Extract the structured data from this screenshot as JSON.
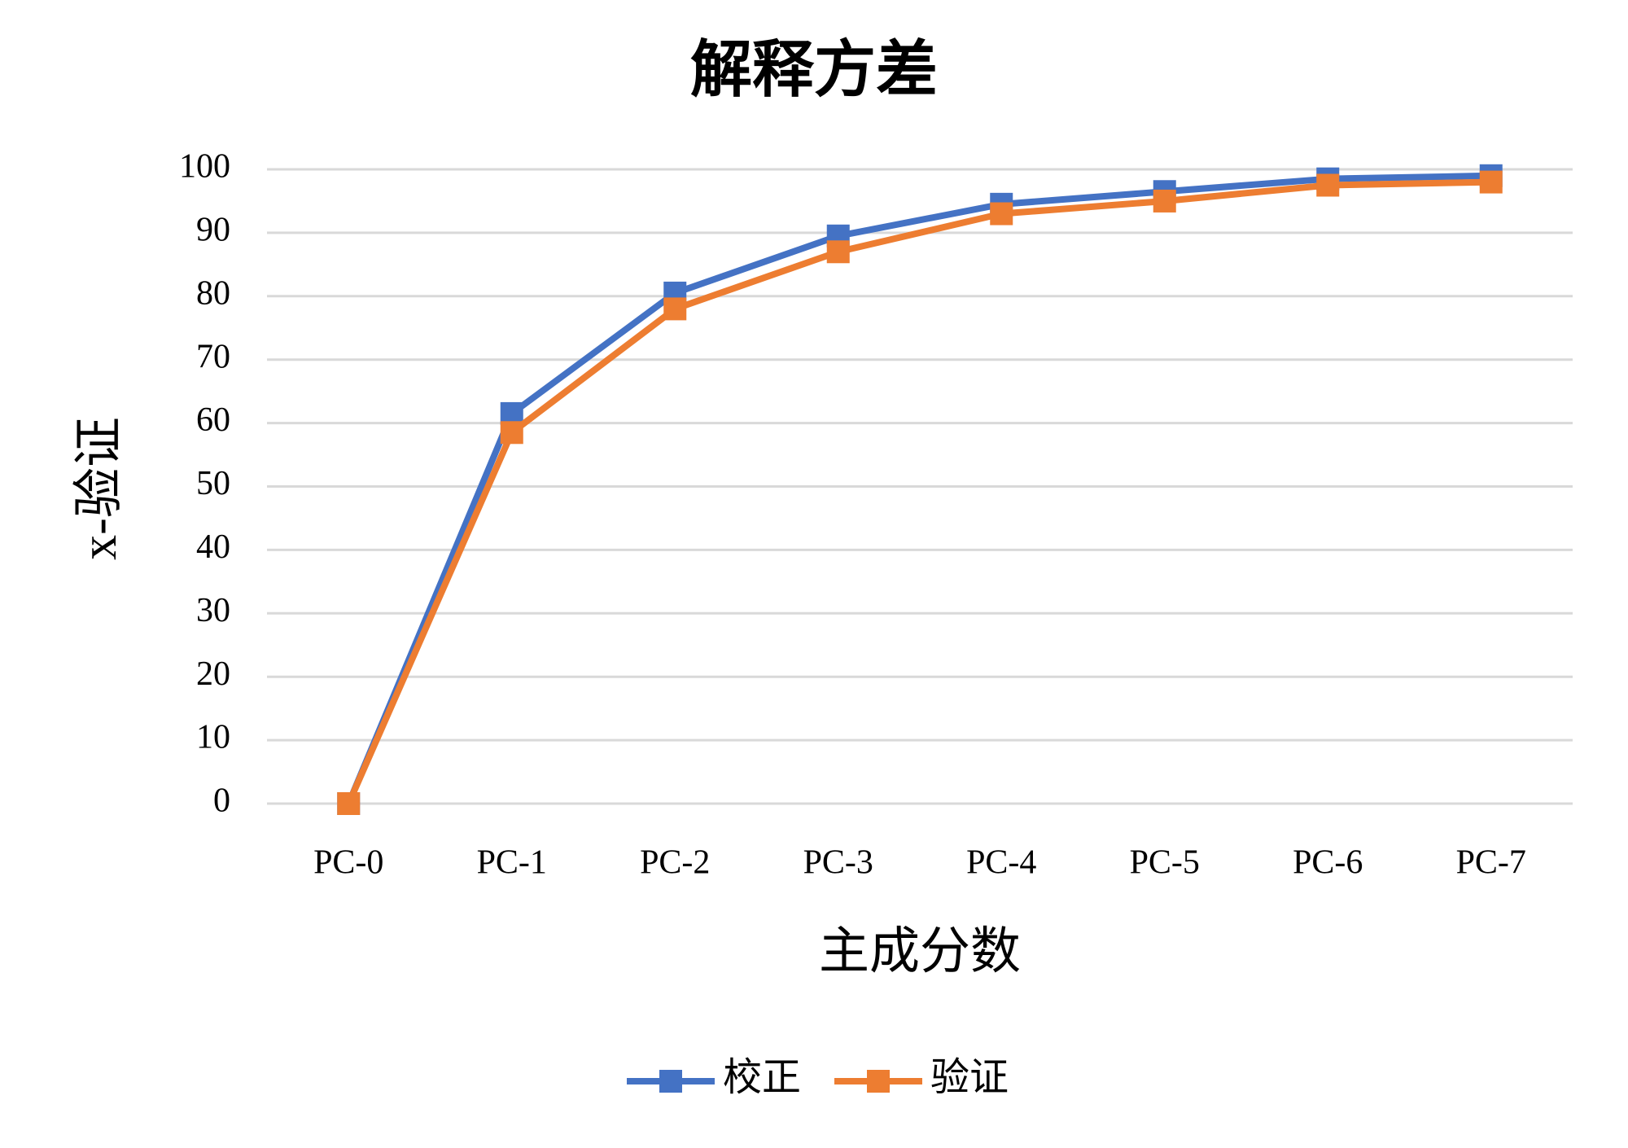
{
  "chart_data": {
    "type": "line",
    "title": "解释方差",
    "x_label": "主成分数",
    "y_label": "x-验证",
    "categories": [
      "PC-0",
      "PC-1",
      "PC-2",
      "PC-3",
      "PC-4",
      "PC-5",
      "PC-6",
      "PC-7"
    ],
    "series": [
      {
        "name": "校正",
        "color": "#4472c4",
        "values": [
          0,
          61.5,
          80.5,
          89.5,
          94.5,
          96.5,
          98.5,
          99
        ]
      },
      {
        "name": "验证",
        "color": "#ed7d31",
        "values": [
          0,
          58.5,
          78,
          87,
          93,
          95,
          97.5,
          98
        ]
      }
    ],
    "ylim": [
      0,
      100
    ],
    "yticks": [
      0,
      10,
      20,
      30,
      40,
      50,
      60,
      70,
      80,
      90,
      100
    ],
    "grid": true,
    "legend": "bottom"
  }
}
